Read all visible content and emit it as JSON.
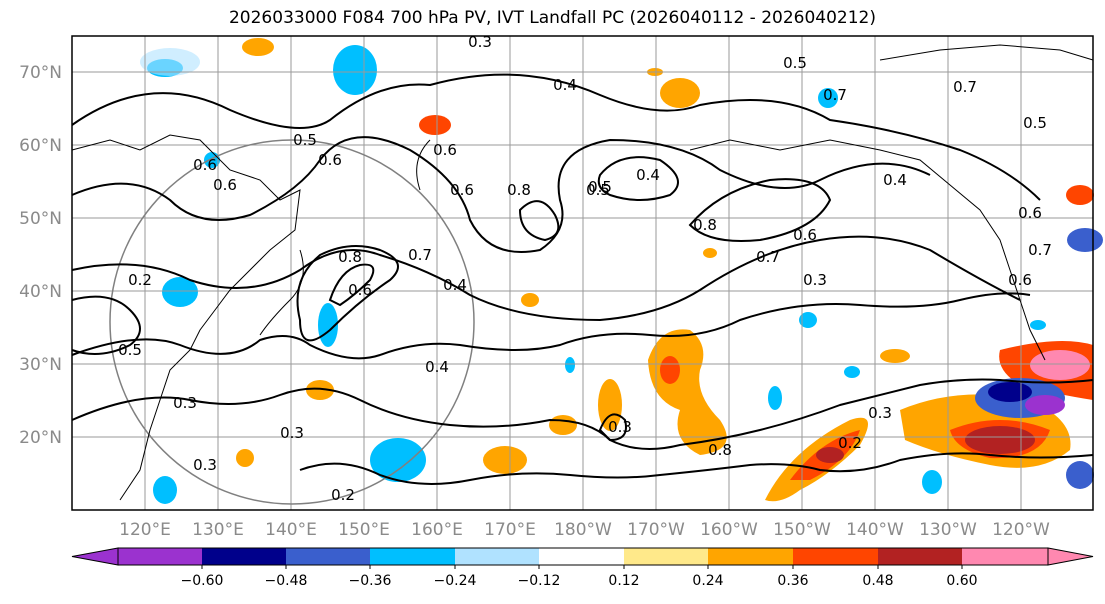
{
  "title": "2026033000 F084 700 hPa PV, IVT Landfall PC (2026040112 - 2026040212)",
  "lat_labels": [
    "70°N",
    "60°N",
    "50°N",
    "40°N",
    "30°N",
    "20°N"
  ],
  "lon_labels": [
    "120°E",
    "130°E",
    "140°E",
    "150°E",
    "160°E",
    "170°E",
    "180°W",
    "170°W",
    "160°W",
    "150°W",
    "140°W",
    "130°W",
    "120°W"
  ],
  "colorbar": {
    "ticks": [
      "−0.60",
      "−0.48",
      "−0.36",
      "−0.24",
      "−0.12",
      "0.12",
      "0.24",
      "0.36",
      "0.48",
      "0.60"
    ],
    "colors": [
      "#9b32cf",
      "#00008b",
      "#3a5fcd",
      "#00bfff",
      "#b0e2ff",
      "#ffffff",
      "#ffe98a",
      "#ffa500",
      "#ff4500",
      "#b22222",
      "#ff88b0",
      "#ff88b0"
    ]
  },
  "contour_labels": [
    "0.3",
    "0.6",
    "0.4",
    "0.7",
    "0.5",
    "0.6",
    "0.6",
    "0.6",
    "0.4",
    "0.8",
    "0.8",
    "0.5",
    "0.7",
    "0.6",
    "0.4",
    "0.8",
    "0.6",
    "0.7",
    "0.4",
    "0.3",
    "0.2",
    "0.3",
    "0.3",
    "0.3",
    "0.2",
    "0.3",
    "0.4",
    "0.2",
    "0.3",
    "0.8",
    "0.7",
    "0.5",
    "0.6",
    "0.5",
    "0.7",
    "0.5",
    "0.6",
    "0.5",
    "0.6"
  ],
  "colors": {
    "grid": "#9a9a9a",
    "contour": "#000000",
    "circle": "#808080"
  }
}
